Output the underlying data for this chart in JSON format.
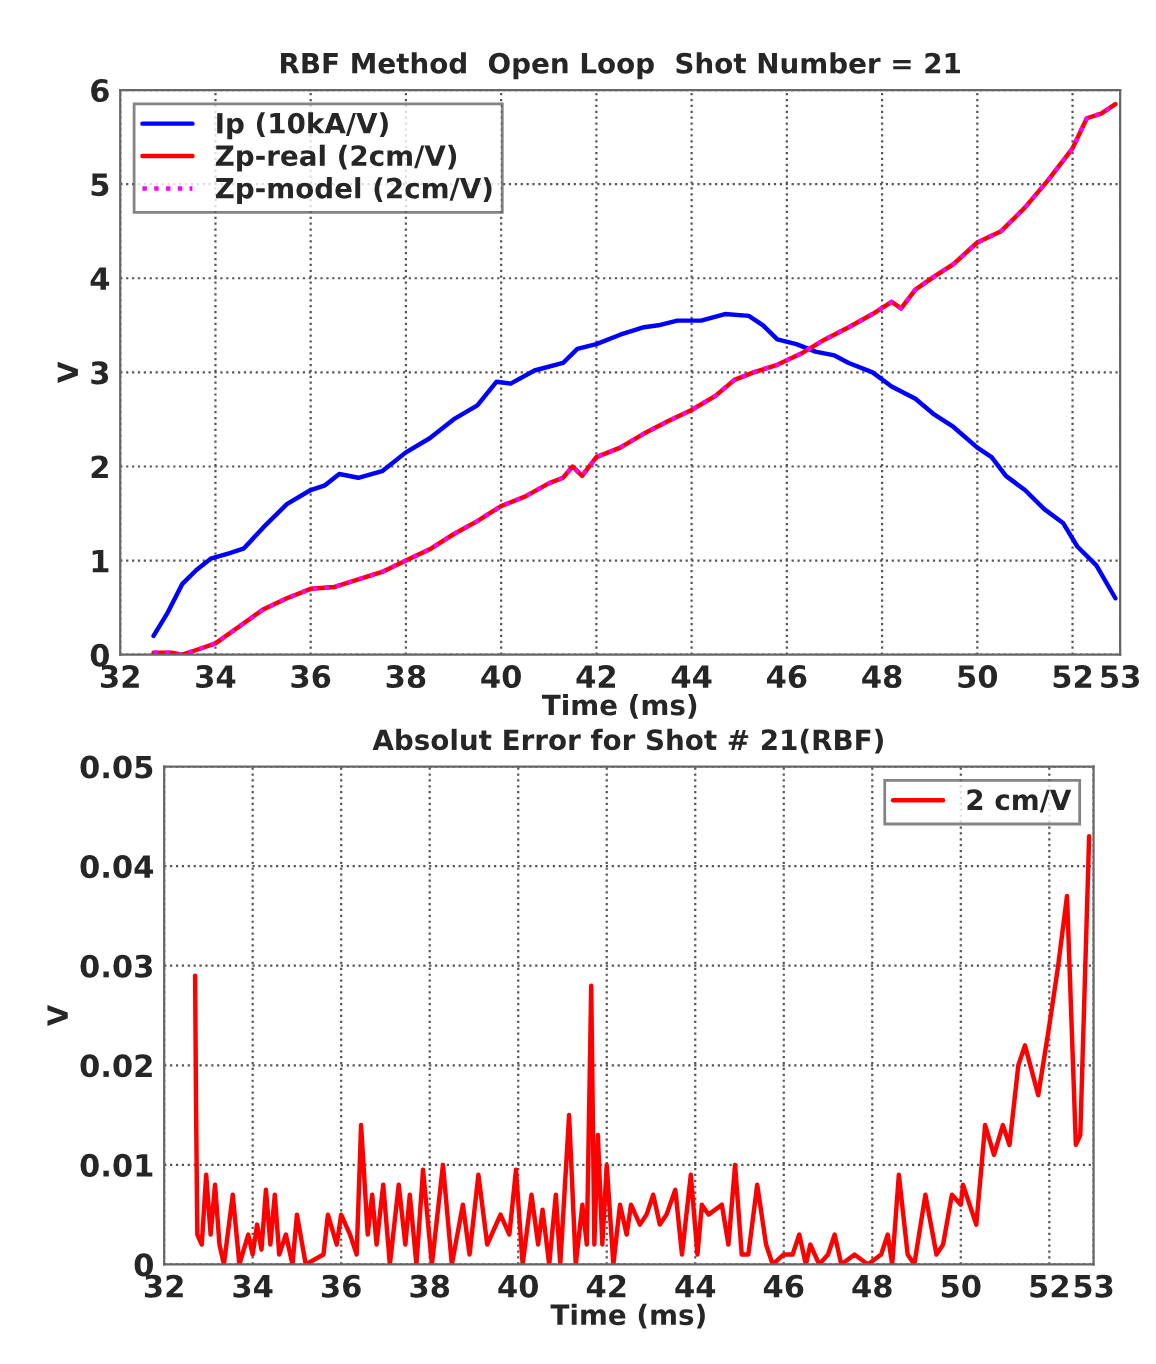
{
  "chart_data": [
    {
      "type": "line",
      "title": "RBF Method  Open Loop  Shot Number = 21",
      "xlabel": "Time (ms)",
      "ylabel": "V",
      "xlim": [
        32,
        53
      ],
      "xticks": [
        32,
        34,
        36,
        38,
        40,
        42,
        44,
        46,
        48,
        50,
        52,
        53
      ],
      "ylim": [
        0,
        6
      ],
      "yticks": [
        0,
        1,
        2,
        3,
        4,
        5,
        6
      ],
      "grid": true,
      "legend": "top left",
      "series": [
        {
          "name": "Ip (10kA/V)",
          "color": "#0000ff",
          "line_style": "solid",
          "x": [
            32.7,
            33,
            33.3,
            33.6,
            33.9,
            34.3,
            34.6,
            35,
            35.5,
            36,
            36.3,
            36.6,
            37,
            37.5,
            38,
            38.5,
            39,
            39.5,
            39.9,
            40.2,
            40.7,
            41.3,
            41.6,
            42,
            42.5,
            43,
            43.3,
            43.7,
            44.2,
            44.7,
            45.2,
            45.5,
            45.8,
            46.2,
            46.6,
            47,
            47.3,
            47.8,
            48.2,
            48.7,
            49.1,
            49.5,
            50,
            50.3,
            50.6,
            51,
            51.4,
            51.8,
            52.1,
            52.5,
            52.9
          ],
          "values": [
            0.2,
            0.45,
            0.75,
            0.9,
            1.02,
            1.08,
            1.13,
            1.35,
            1.6,
            1.75,
            1.8,
            1.92,
            1.88,
            1.95,
            2.15,
            2.3,
            2.5,
            2.65,
            2.9,
            2.88,
            3.02,
            3.1,
            3.25,
            3.3,
            3.4,
            3.48,
            3.5,
            3.55,
            3.55,
            3.62,
            3.6,
            3.5,
            3.35,
            3.3,
            3.22,
            3.18,
            3.1,
            3.0,
            2.85,
            2.72,
            2.55,
            2.42,
            2.2,
            2.1,
            1.9,
            1.75,
            1.55,
            1.4,
            1.15,
            0.95,
            0.6
          ]
        },
        {
          "name": "Zp-real (2cm/V)",
          "color": "#ff0000",
          "line_style": "solid",
          "x": [
            32.7,
            33.1,
            33.3,
            33.6,
            34,
            34.5,
            35,
            35.5,
            36,
            36.5,
            37,
            37.5,
            38,
            38.5,
            39,
            39.5,
            40,
            40.5,
            41,
            41.3,
            41.5,
            41.7,
            42,
            42.5,
            43,
            43.5,
            44,
            44.5,
            44.9,
            45.3,
            45.8,
            46.3,
            46.8,
            47.3,
            47.8,
            48.2,
            48.4,
            48.7,
            49.1,
            49.5,
            50,
            50.5,
            51,
            51.5,
            52,
            52.3,
            52.6,
            52.9
          ],
          "values": [
            0.02,
            0.02,
            0.0,
            0.05,
            0.12,
            0.3,
            0.48,
            0.6,
            0.7,
            0.72,
            0.8,
            0.88,
            1.0,
            1.12,
            1.28,
            1.42,
            1.58,
            1.68,
            1.82,
            1.88,
            2.0,
            1.9,
            2.1,
            2.2,
            2.35,
            2.48,
            2.6,
            2.75,
            2.92,
            3.0,
            3.08,
            3.2,
            3.35,
            3.48,
            3.62,
            3.75,
            3.68,
            3.88,
            4.02,
            4.15,
            4.38,
            4.5,
            4.75,
            5.05,
            5.38,
            5.7,
            5.75,
            5.85
          ]
        },
        {
          "name": "Zp-model (2cm/V)",
          "color": "#ff00ff",
          "line_style": "dotted",
          "x": [
            32.7,
            33.1,
            33.3,
            33.6,
            34,
            34.5,
            35,
            35.5,
            36,
            36.5,
            37,
            37.5,
            38,
            38.5,
            39,
            39.5,
            40,
            40.5,
            41,
            41.3,
            41.5,
            41.7,
            42,
            42.5,
            43,
            43.5,
            44,
            44.5,
            44.9,
            45.3,
            45.8,
            46.3,
            46.8,
            47.3,
            47.8,
            48.2,
            48.4,
            48.7,
            49.1,
            49.5,
            50,
            50.5,
            51,
            51.5,
            52,
            52.3,
            52.6,
            52.9
          ],
          "values": [
            0.02,
            0.02,
            0.0,
            0.05,
            0.12,
            0.3,
            0.48,
            0.6,
            0.7,
            0.72,
            0.8,
            0.88,
            1.0,
            1.12,
            1.28,
            1.42,
            1.58,
            1.68,
            1.82,
            1.88,
            2.0,
            1.9,
            2.1,
            2.2,
            2.35,
            2.48,
            2.6,
            2.75,
            2.92,
            3.0,
            3.08,
            3.2,
            3.35,
            3.48,
            3.62,
            3.75,
            3.68,
            3.88,
            4.02,
            4.15,
            4.38,
            4.5,
            4.75,
            5.05,
            5.38,
            5.7,
            5.75,
            5.85
          ]
        }
      ]
    },
    {
      "type": "line",
      "title": "Absolut Error for Shot # 21(RBF)",
      "xlabel": "Time (ms)",
      "ylabel": "V",
      "xlim": [
        32,
        53
      ],
      "xticks": [
        32,
        34,
        36,
        38,
        40,
        42,
        44,
        46,
        48,
        50,
        52,
        53
      ],
      "ylim": [
        0,
        0.05
      ],
      "yticks": [
        0,
        0.01,
        0.02,
        0.03,
        0.04,
        0.05
      ],
      "grid": true,
      "legend": "top right",
      "series": [
        {
          "name": "2 cm/V",
          "color": "#ff0000",
          "line_style": "solid",
          "x": [
            32.7,
            32.72,
            32.75,
            32.85,
            32.95,
            33.05,
            33.15,
            33.25,
            33.35,
            33.55,
            33.7,
            33.9,
            34.0,
            34.1,
            34.2,
            34.3,
            34.4,
            34.5,
            34.6,
            34.75,
            34.9,
            35.0,
            35.2,
            35.6,
            35.7,
            35.9,
            36.0,
            36.2,
            36.35,
            36.45,
            36.6,
            36.7,
            36.8,
            36.95,
            37.1,
            37.3,
            37.45,
            37.55,
            37.7,
            37.85,
            38.05,
            38.3,
            38.5,
            38.75,
            38.9,
            39.1,
            39.3,
            39.6,
            39.8,
            39.95,
            40.1,
            40.3,
            40.45,
            40.55,
            40.7,
            40.85,
            40.95,
            41.15,
            41.3,
            41.45,
            41.55,
            41.65,
            41.72,
            41.8,
            41.9,
            42.0,
            42.15,
            42.3,
            42.45,
            42.55,
            42.75,
            42.9,
            43.05,
            43.2,
            43.35,
            43.55,
            43.7,
            43.9,
            44.05,
            44.15,
            44.3,
            44.6,
            44.75,
            44.9,
            45.05,
            45.2,
            45.4,
            45.6,
            45.75,
            46.0,
            46.2,
            46.35,
            46.5,
            46.6,
            46.8,
            47.0,
            47.15,
            47.3,
            47.6,
            47.9,
            48.2,
            48.35,
            48.45,
            48.6,
            48.8,
            48.95,
            49.2,
            49.45,
            49.6,
            49.8,
            50.0,
            50.05,
            50.2,
            50.35,
            50.55,
            50.75,
            50.95,
            51.1,
            51.3,
            51.45,
            51.75,
            52.0,
            52.2,
            52.4,
            52.6,
            52.7,
            52.9
          ],
          "values": [
            0.029,
            0.016,
            0.003,
            0.002,
            0.009,
            0.003,
            0.008,
            0.002,
            0.0,
            0.007,
            0.0,
            0.003,
            0.001,
            0.004,
            0.0015,
            0.0075,
            0.002,
            0.007,
            0.001,
            0.003,
            0.0,
            0.005,
            0.0,
            0.001,
            0.005,
            0.002,
            0.005,
            0.003,
            0.001,
            0.014,
            0.003,
            0.007,
            0.002,
            0.008,
            0.0,
            0.008,
            0.002,
            0.007,
            0.0,
            0.0095,
            0.0,
            0.01,
            0.0,
            0.006,
            0.001,
            0.009,
            0.002,
            0.005,
            0.003,
            0.0095,
            0.0,
            0.007,
            0.002,
            0.0055,
            0.0,
            0.007,
            0.0,
            0.015,
            0.0,
            0.006,
            0.002,
            0.028,
            0.002,
            0.013,
            0.002,
            0.01,
            0.0,
            0.006,
            0.003,
            0.006,
            0.004,
            0.005,
            0.007,
            0.004,
            0.005,
            0.0075,
            0.001,
            0.009,
            0.001,
            0.006,
            0.005,
            0.006,
            0.002,
            0.01,
            0.001,
            0.001,
            0.008,
            0.002,
            0.0,
            0.001,
            0.001,
            0.003,
            0.0,
            0.002,
            0.0,
            0.001,
            0.003,
            0.0,
            0.001,
            0.0,
            0.001,
            0.003,
            0.0,
            0.009,
            0.001,
            0.0,
            0.007,
            0.001,
            0.002,
            0.007,
            0.006,
            0.008,
            0.006,
            0.004,
            0.014,
            0.011,
            0.014,
            0.012,
            0.02,
            0.022,
            0.017,
            0.024,
            0.03,
            0.037,
            0.012,
            0.013,
            0.043
          ]
        }
      ]
    }
  ]
}
